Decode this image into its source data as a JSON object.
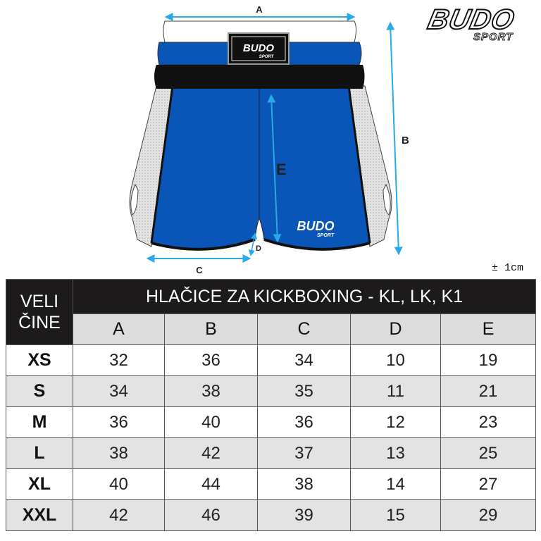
{
  "diagram": {
    "labels": {
      "a": "A",
      "b": "B",
      "c": "C",
      "d": "D",
      "e": "E"
    },
    "garment_logo": {
      "main": "BUDO",
      "sub": "SPORT"
    },
    "colors": {
      "shorts_blue": "#0a55b8",
      "measure_arrow": "#29a9e6",
      "waistband_black": "#111111",
      "side_panel_gray": "#d8d8d8"
    }
  },
  "brand_logo": {
    "main": "BUDO",
    "sub": "SPORT"
  },
  "tolerance": "± 1cm",
  "table": {
    "size_header": [
      "VELI",
      "ČINE"
    ],
    "title": "HLAČICE ZA KICKBOXING - KL, LK, K1",
    "columns": [
      "A",
      "B",
      "C",
      "D",
      "E"
    ],
    "rows": [
      {
        "size": "XS",
        "values": [
          "32",
          "36",
          "34",
          "10",
          "19"
        ]
      },
      {
        "size": "S",
        "values": [
          "34",
          "38",
          "35",
          "11",
          "21"
        ]
      },
      {
        "size": "M",
        "values": [
          "36",
          "40",
          "36",
          "12",
          "23"
        ]
      },
      {
        "size": "L",
        "values": [
          "38",
          "42",
          "37",
          "13",
          "25"
        ]
      },
      {
        "size": "XL",
        "values": [
          "40",
          "44",
          "38",
          "14",
          "27"
        ]
      },
      {
        "size": "XXL",
        "values": [
          "42",
          "46",
          "39",
          "15",
          "29"
        ]
      }
    ]
  }
}
